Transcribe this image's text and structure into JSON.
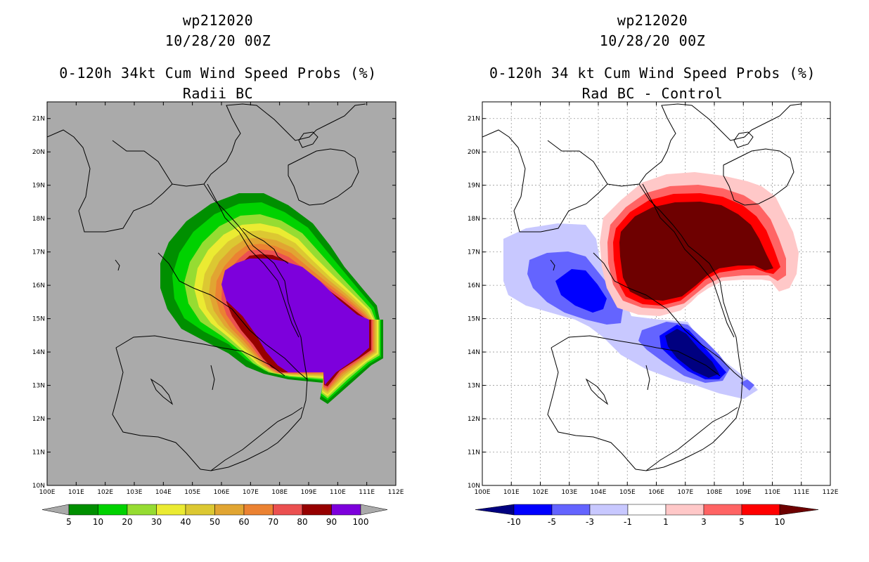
{
  "chart_data": [
    {
      "type": "heatmap",
      "title_line1": "wp212020",
      "title_line2": "10/28/20 00Z",
      "title_line3": "0-120h 34kt Cum Wind Speed Probs (%)",
      "title_line4": "Radii BC",
      "x_range": [
        100,
        112
      ],
      "y_range": [
        10,
        21.5
      ],
      "x_ticks": [
        "100E",
        "101E",
        "102E",
        "103E",
        "104E",
        "105E",
        "106E",
        "107E",
        "108E",
        "109E",
        "110E",
        "111E",
        "112E"
      ],
      "y_ticks": [
        "10N",
        "11N",
        "12N",
        "13N",
        "14N",
        "15N",
        "16N",
        "17N",
        "18N",
        "19N",
        "20N",
        "21N"
      ],
      "grid": false,
      "colorbar": {
        "labels": [
          "5",
          "10",
          "20",
          "30",
          "40",
          "50",
          "60",
          "70",
          "80",
          "90",
          "100"
        ],
        "colors": [
          "#008f00",
          "#00d200",
          "#96dc32",
          "#ebeb32",
          "#dcc832",
          "#e1a532",
          "#eb8232",
          "#eb5050",
          "#960000",
          "#7d00dc"
        ]
      },
      "background_color": "#aaaaaa"
    },
    {
      "type": "heatmap",
      "title_line1": "wp212020",
      "title_line2": "10/28/20 00Z",
      "title_line3": "0-120h 34 kt Cum Wind Speed Probs (%)",
      "title_line4": "Rad BC - Control",
      "x_range": [
        100,
        112
      ],
      "y_range": [
        10,
        21.5
      ],
      "x_ticks": [
        "100E",
        "101E",
        "102E",
        "103E",
        "104E",
        "105E",
        "106E",
        "107E",
        "108E",
        "109E",
        "110E",
        "111E",
        "112E"
      ],
      "y_ticks": [
        "10N",
        "11N",
        "12N",
        "13N",
        "14N",
        "15N",
        "16N",
        "17N",
        "18N",
        "19N",
        "20N",
        "21N"
      ],
      "grid": true,
      "colorbar": {
        "labels": [
          "-10",
          "-5",
          "-3",
          "-1",
          "1",
          "3",
          "5",
          "10"
        ],
        "colors": [
          "#000080",
          "#0000ff",
          "#6464ff",
          "#c8c8ff",
          "#ffffff",
          "#ffc8c8",
          "#ff6464",
          "#ff0000",
          "#6e0000"
        ]
      },
      "background_color": "#ffffff"
    }
  ]
}
